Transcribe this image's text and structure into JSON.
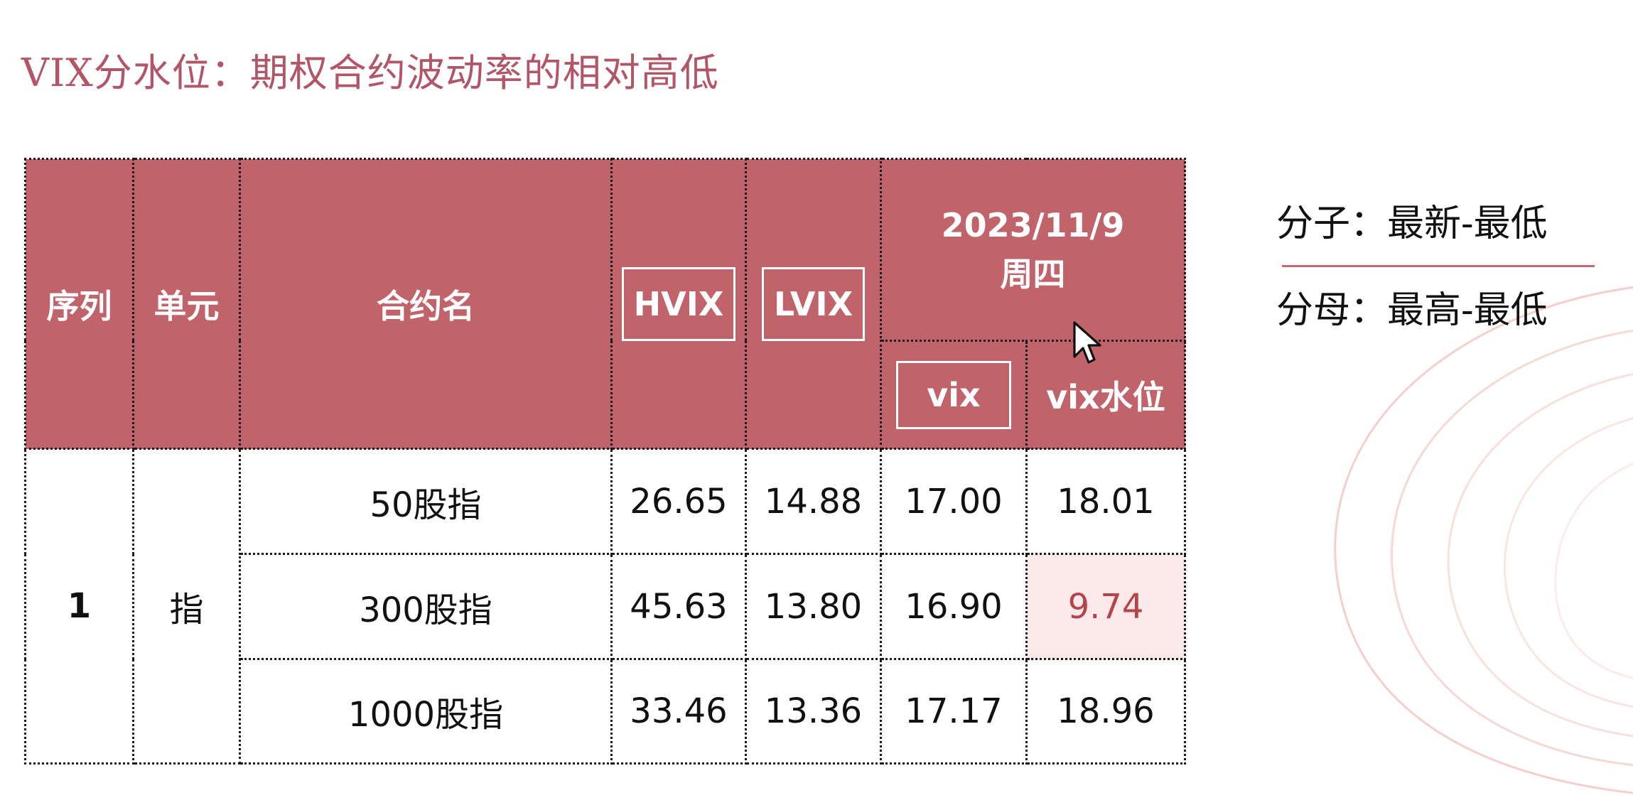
{
  "slide": {
    "title": "VIX分水位：期权合约波动率的相对高低"
  },
  "table": {
    "headers": {
      "index": "序列",
      "unit": "单元",
      "contract": "合约名",
      "hvix": "HVIX",
      "lvix": "LVIX",
      "date": "2023/11/9",
      "weekday": "周四",
      "vix": "vix",
      "vix_level": "vix水位"
    },
    "group": {
      "index": "1",
      "unit": "指"
    },
    "rows": [
      {
        "contract": "50股指",
        "hvix": "26.65",
        "lvix": "14.88",
        "vix": "17.00",
        "vix_level": "18.01"
      },
      {
        "contract": "300股指",
        "hvix": "45.63",
        "lvix": "13.80",
        "vix": "16.90",
        "vix_level": "9.74"
      },
      {
        "contract": "1000股指",
        "hvix": "33.46",
        "lvix": "13.36",
        "vix": "17.17",
        "vix_level": "18.96"
      }
    ],
    "colors": {
      "header_bg": "#c1636a",
      "highlight_bg": "#fbe9ea",
      "highlight_text": "#b5444a"
    }
  },
  "formula": {
    "numerator": "分子：最新-最低",
    "denominator": "分母：最高-最低"
  },
  "title_color": "#b25566",
  "cursor_icon": "mouse-pointer-icon"
}
